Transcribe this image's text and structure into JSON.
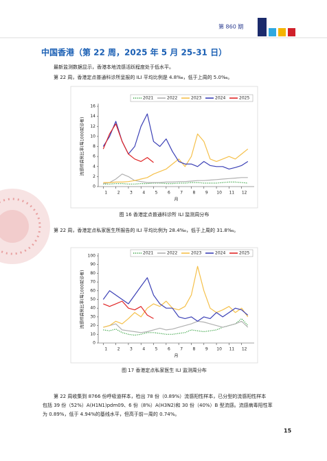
{
  "header": {
    "issue": "第 860 期",
    "page_number": "15"
  },
  "section": {
    "title": "中国香港（第 22 周，2025 年 5 月 25-31 日）"
  },
  "paragraphs": [
    "最新监测数据显示，香港本地流感活跃程度处于低水平。",
    "第 22 周，香港定点普通科诊所呈报的 ILI 平均比例是 4.8‰，低于上周的 5.0‰。",
    "第 22 周，香港定点私家医生所报告的 ILI 平均比例为 28.4‰，低于上周的 31.8‰。"
  ],
  "final_paragraph": [
    "第 22 周收集到 8766 份呼吸道样本，检出 78 份（0.89%）流感阳性样本，已分型的流感阳性样本",
    "包括 39 份（52%）A(H1N1)pdm09、6 份（8%）A(H3N2)和 30 份（40%）B 型流感。流感病毒阳性率",
    "为 0.89%，低于 4.94%的基线水平，但高于前一周的 0.74%。"
  ],
  "figures": [
    {
      "caption": "图 16   香港定点普通科诊所 ILI 监测周分布",
      "chart": {
        "type": "line",
        "y_label": "流感样病例比率(每1000就诊者)",
        "x_label": "月",
        "x": [
          1,
          1.5,
          2,
          2.5,
          3,
          3.5,
          4,
          4.5,
          5,
          5.5,
          6,
          6.5,
          7,
          7.5,
          8,
          8.5,
          9,
          9.5,
          10,
          10.5,
          11,
          11.5,
          12,
          12.5
        ],
        "xlim": [
          0.6,
          13
        ],
        "xticks": [
          1,
          2,
          3,
          4,
          5,
          6,
          7,
          8,
          9,
          10,
          11,
          12
        ],
        "ylim": [
          0,
          16
        ],
        "yticks": [
          0,
          2,
          4,
          6,
          8,
          10,
          12,
          14,
          16
        ],
        "series": [
          {
            "name": "2021",
            "color": "#2e9e3a",
            "values": [
              0.5,
              0.5,
              0.6,
              0.6,
              0.5,
              0.5,
              0.6,
              0.6,
              0.7,
              0.7,
              0.6,
              0.6,
              0.7,
              0.7,
              0.8,
              0.8,
              0.7,
              0.7,
              0.7,
              0.8,
              0.9,
              0.9,
              0.8,
              0.7
            ]
          },
          {
            "name": "2022",
            "color": "#b0b0b0",
            "values": [
              0.6,
              0.8,
              1.5,
              2.5,
              2.0,
              1.2,
              1.0,
              0.8,
              0.8,
              0.8,
              0.9,
              0.9,
              1.0,
              1.0,
              1.1,
              1.2,
              1.2,
              1.3,
              1.4,
              1.5,
              1.6,
              1.7,
              1.8,
              1.8
            ]
          },
          {
            "name": "2023",
            "color": "#f5c04a",
            "values": [
              0.8,
              0.8,
              0.9,
              0.9,
              1.0,
              1.2,
              1.5,
              1.8,
              2.5,
              3.0,
              3.5,
              4.5,
              5.5,
              4.0,
              6.0,
              10.5,
              9.0,
              5.5,
              5.0,
              5.5,
              6.0,
              5.5,
              6.5,
              7.5
            ]
          },
          {
            "name": "2024",
            "color": "#3a3fb5",
            "values": [
              8.0,
              10.0,
              13.0,
              9.0,
              6.5,
              8.0,
              12.0,
              14.5,
              9.0,
              8.0,
              9.5,
              7.0,
              5.0,
              4.5,
              4.5,
              4.0,
              5.0,
              4.2,
              4.0,
              4.0,
              3.5,
              3.8,
              4.2,
              5.0
            ]
          },
          {
            "name": "2025",
            "color": "#e02424",
            "values": [
              7.5,
              10.5,
              12.5,
              9.0,
              6.5,
              5.5,
              5.0,
              5.8,
              4.8,
              null,
              null,
              null,
              null,
              null,
              null,
              null,
              null,
              null,
              null,
              null,
              null,
              null,
              null,
              null
            ]
          }
        ]
      }
    },
    {
      "caption": "图 17   香港定点私家医生 ILI 监测周分布",
      "chart": {
        "type": "line",
        "y_label": "流感样病例比率(每1000就诊者)",
        "x_label": "月",
        "x": [
          1,
          1.5,
          2,
          2.5,
          3,
          3.5,
          4,
          4.5,
          5,
          5.5,
          6,
          6.5,
          7,
          7.5,
          8,
          8.5,
          9,
          9.5,
          10,
          10.5,
          11,
          11.5,
          12,
          12.5
        ],
        "xlim": [
          0.6,
          13
        ],
        "xticks": [
          1,
          2,
          3,
          4,
          5,
          6,
          7,
          8,
          9,
          10,
          11,
          12
        ],
        "ylim": [
          0,
          100
        ],
        "yticks": [
          0,
          10,
          20,
          30,
          40,
          50,
          60,
          70,
          80,
          90,
          100
        ],
        "series": [
          {
            "name": "2021",
            "color": "#2e9e3a",
            "values": [
              15,
              14,
              16,
              12,
              10,
              9,
              10,
              12,
              12,
              11,
              10,
              10,
              11,
              12,
              15,
              14,
              13,
              14,
              15,
              18,
              20,
              22,
              28,
              20
            ]
          },
          {
            "name": "2022",
            "color": "#b0b0b0",
            "values": [
              18,
              20,
              22,
              15,
              14,
              13,
              12,
              13,
              15,
              17,
              15,
              16,
              18,
              20,
              22,
              25,
              24,
              22,
              20,
              18,
              20,
              22,
              25,
              18
            ]
          },
          {
            "name": "2023",
            "color": "#f5c04a",
            "values": [
              18,
              20,
              25,
              22,
              28,
              35,
              30,
              40,
              45,
              42,
              48,
              40,
              38,
              42,
              55,
              88,
              60,
              40,
              35,
              38,
              42,
              35,
              40,
              30
            ]
          },
          {
            "name": "2024",
            "color": "#3a3fb5",
            "values": [
              50,
              60,
              55,
              50,
              45,
              55,
              65,
              75,
              55,
              45,
              40,
              40,
              30,
              28,
              30,
              25,
              30,
              28,
              35,
              30,
              35,
              40,
              38,
              32
            ]
          },
          {
            "name": "2025",
            "color": "#e02424",
            "values": [
              45,
              42,
              45,
              48,
              40,
              38,
              42,
              32,
              28,
              null,
              null,
              null,
              null,
              null,
              null,
              null,
              null,
              null,
              null,
              null,
              null,
              null,
              null,
              null
            ]
          }
        ]
      }
    }
  ]
}
